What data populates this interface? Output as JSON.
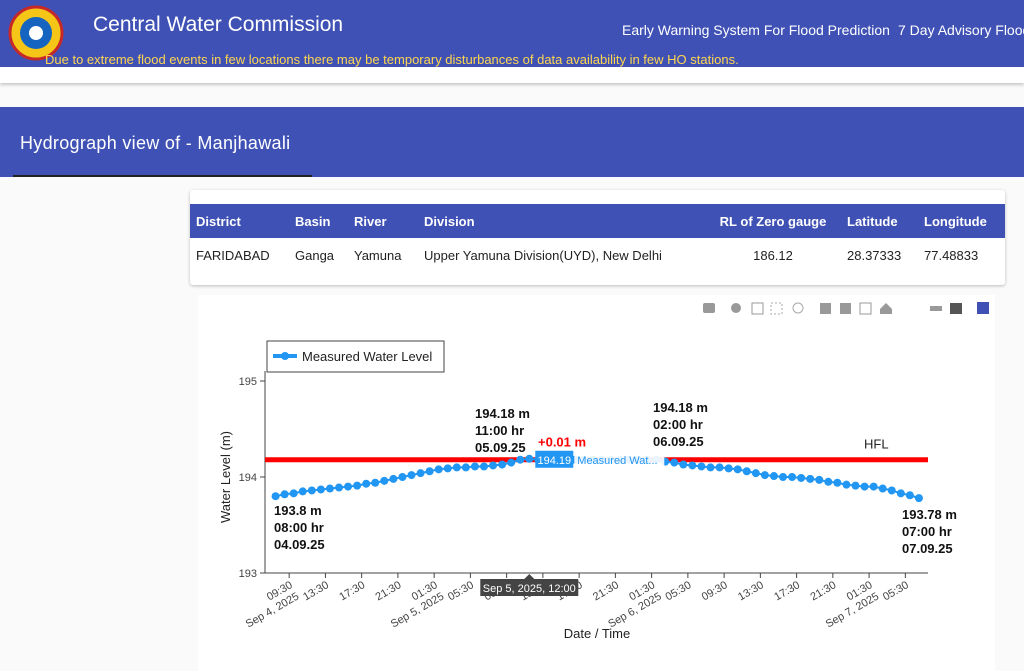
{
  "header": {
    "title": "Central Water Commission",
    "nav": [
      "Early Warning System For Flood Prediction",
      "7 Day Advisory Flood"
    ],
    "notice": "Due to extreme flood events in few locations there may be temporary disturbances of data availability in few HO stations."
  },
  "section_title": "Hydrograph view of - Manjhawali",
  "table": {
    "headers": [
      "District",
      "Basin",
      "River",
      "Division",
      "RL of Zero gauge",
      "Latitude",
      "Longitude"
    ],
    "rows": [
      [
        "FARIDABAD",
        "Ganga",
        "Yamuna",
        "Upper Yamuna Division(UYD), New Delhi",
        "186.12",
        "28.37333",
        "77.48833"
      ]
    ]
  },
  "chart_data": {
    "type": "line",
    "y_label": "Water Level (m)",
    "x_label": "Date / Time",
    "x": [
      "2025-09-04T08:00",
      "2025-09-04T09:00",
      "2025-09-04T10:00",
      "2025-09-04T11:00",
      "2025-09-04T12:00",
      "2025-09-04T13:00",
      "2025-09-04T14:00",
      "2025-09-04T15:00",
      "2025-09-04T16:00",
      "2025-09-04T17:00",
      "2025-09-04T18:00",
      "2025-09-04T19:00",
      "2025-09-04T20:00",
      "2025-09-04T21:00",
      "2025-09-04T22:00",
      "2025-09-04T23:00",
      "2025-09-05T00:00",
      "2025-09-05T01:00",
      "2025-09-05T02:00",
      "2025-09-05T03:00",
      "2025-09-05T04:00",
      "2025-09-05T05:00",
      "2025-09-05T06:00",
      "2025-09-05T07:00",
      "2025-09-05T08:00",
      "2025-09-05T09:00",
      "2025-09-05T10:00",
      "2025-09-05T11:00",
      "2025-09-05T12:00",
      "2025-09-05T13:00",
      "2025-09-05T14:00",
      "2025-09-05T15:00",
      "2025-09-05T16:00",
      "2025-09-05T17:00",
      "2025-09-05T18:00",
      "2025-09-05T19:00",
      "2025-09-05T20:00",
      "2025-09-05T21:00",
      "2025-09-05T22:00",
      "2025-09-05T23:00",
      "2025-09-06T00:00",
      "2025-09-06T01:00",
      "2025-09-06T02:00",
      "2025-09-06T03:00",
      "2025-09-06T04:00",
      "2025-09-06T05:00",
      "2025-09-06T06:00",
      "2025-09-06T07:00",
      "2025-09-06T08:00",
      "2025-09-06T09:00",
      "2025-09-06T10:00",
      "2025-09-06T11:00",
      "2025-09-06T12:00",
      "2025-09-06T13:00",
      "2025-09-06T14:00",
      "2025-09-06T15:00",
      "2025-09-06T16:00",
      "2025-09-06T17:00",
      "2025-09-06T18:00",
      "2025-09-06T19:00",
      "2025-09-06T20:00",
      "2025-09-06T21:00",
      "2025-09-06T22:00",
      "2025-09-06T23:00",
      "2025-09-07T00:00",
      "2025-09-07T01:00",
      "2025-09-07T02:00",
      "2025-09-07T03:00",
      "2025-09-07T04:00",
      "2025-09-07T05:00",
      "2025-09-07T06:00",
      "2025-09-07T07:00"
    ],
    "series": [
      {
        "name": "Measured Water Level",
        "color": "#2196f3",
        "values": [
          193.8,
          193.82,
          193.83,
          193.85,
          193.86,
          193.87,
          193.88,
          193.89,
          193.9,
          193.91,
          193.93,
          193.94,
          193.96,
          193.98,
          194.0,
          194.02,
          194.04,
          194.06,
          194.08,
          194.09,
          194.1,
          194.1,
          194.11,
          194.11,
          194.12,
          194.13,
          194.15,
          194.18,
          194.19,
          194.18,
          194.18,
          194.18,
          194.18,
          194.18,
          194.18,
          194.18,
          194.18,
          194.18,
          194.18,
          194.18,
          194.18,
          194.18,
          194.18,
          194.16,
          194.15,
          194.13,
          194.12,
          194.11,
          194.1,
          194.1,
          194.09,
          194.08,
          194.06,
          194.04,
          194.02,
          194.01,
          194.0,
          194.0,
          193.99,
          193.98,
          193.97,
          193.95,
          193.94,
          193.92,
          193.91,
          193.9,
          193.9,
          193.88,
          193.86,
          193.83,
          193.81,
          193.78
        ]
      }
    ],
    "xlim": [
      "2025-09-04T06:50",
      "2025-09-07T08:00"
    ],
    "xticks": [
      {
        "value": "2025-09-04T09:30",
        "label": [
          "09:30",
          "Sep 4, 2025"
        ]
      },
      {
        "value": "2025-09-04T13:30",
        "label": [
          "13:30"
        ]
      },
      {
        "value": "2025-09-04T17:30",
        "label": [
          "17:30"
        ]
      },
      {
        "value": "2025-09-04T21:30",
        "label": [
          "21:30"
        ]
      },
      {
        "value": "2025-09-05T01:30",
        "label": [
          "01:30",
          "Sep 5, 2025"
        ]
      },
      {
        "value": "2025-09-05T05:30",
        "label": [
          "05:30"
        ]
      },
      {
        "value": "2025-09-05T09:30",
        "label": [
          "09:30"
        ]
      },
      {
        "value": "2025-09-05T13:30",
        "label": [
          "13:30"
        ]
      },
      {
        "value": "2025-09-05T17:30",
        "label": [
          "17:30"
        ]
      },
      {
        "value": "2025-09-05T21:30",
        "label": [
          "21:30"
        ]
      },
      {
        "value": "2025-09-06T01:30",
        "label": [
          "01:30",
          "Sep 6, 2025"
        ]
      },
      {
        "value": "2025-09-06T05:30",
        "label": [
          "05:30"
        ]
      },
      {
        "value": "2025-09-06T09:30",
        "label": [
          "09:30"
        ]
      },
      {
        "value": "2025-09-06T13:30",
        "label": [
          "13:30"
        ]
      },
      {
        "value": "2025-09-06T17:30",
        "label": [
          "17:30"
        ]
      },
      {
        "value": "2025-09-06T21:30",
        "label": [
          "21:30"
        ]
      },
      {
        "value": "2025-09-07T01:30",
        "label": [
          "01:30",
          "Sep 7, 2025"
        ]
      },
      {
        "value": "2025-09-07T05:30",
        "label": [
          "05:30"
        ]
      }
    ],
    "ylim": [
      193,
      195
    ],
    "yticks": [
      193,
      194,
      195
    ],
    "reference_line": {
      "label": "HFL",
      "value": 194.18,
      "color": "#ff0000"
    },
    "exceedance_label": "+0.01 m",
    "annotations": [
      [
        "193.8 m",
        "08:00 hr",
        "04.09.25"
      ],
      [
        "194.18 m",
        "11:00 hr",
        "05.09.25"
      ],
      [
        "194.18 m",
        "02:00 hr",
        "06.09.25"
      ],
      [
        "193.78 m",
        "07:00 hr",
        "07.09.25"
      ]
    ],
    "hover": {
      "value_label": "194.19",
      "series_label": "Measured Wat...",
      "x_label": "Sep 5, 2025, 12:00"
    }
  }
}
